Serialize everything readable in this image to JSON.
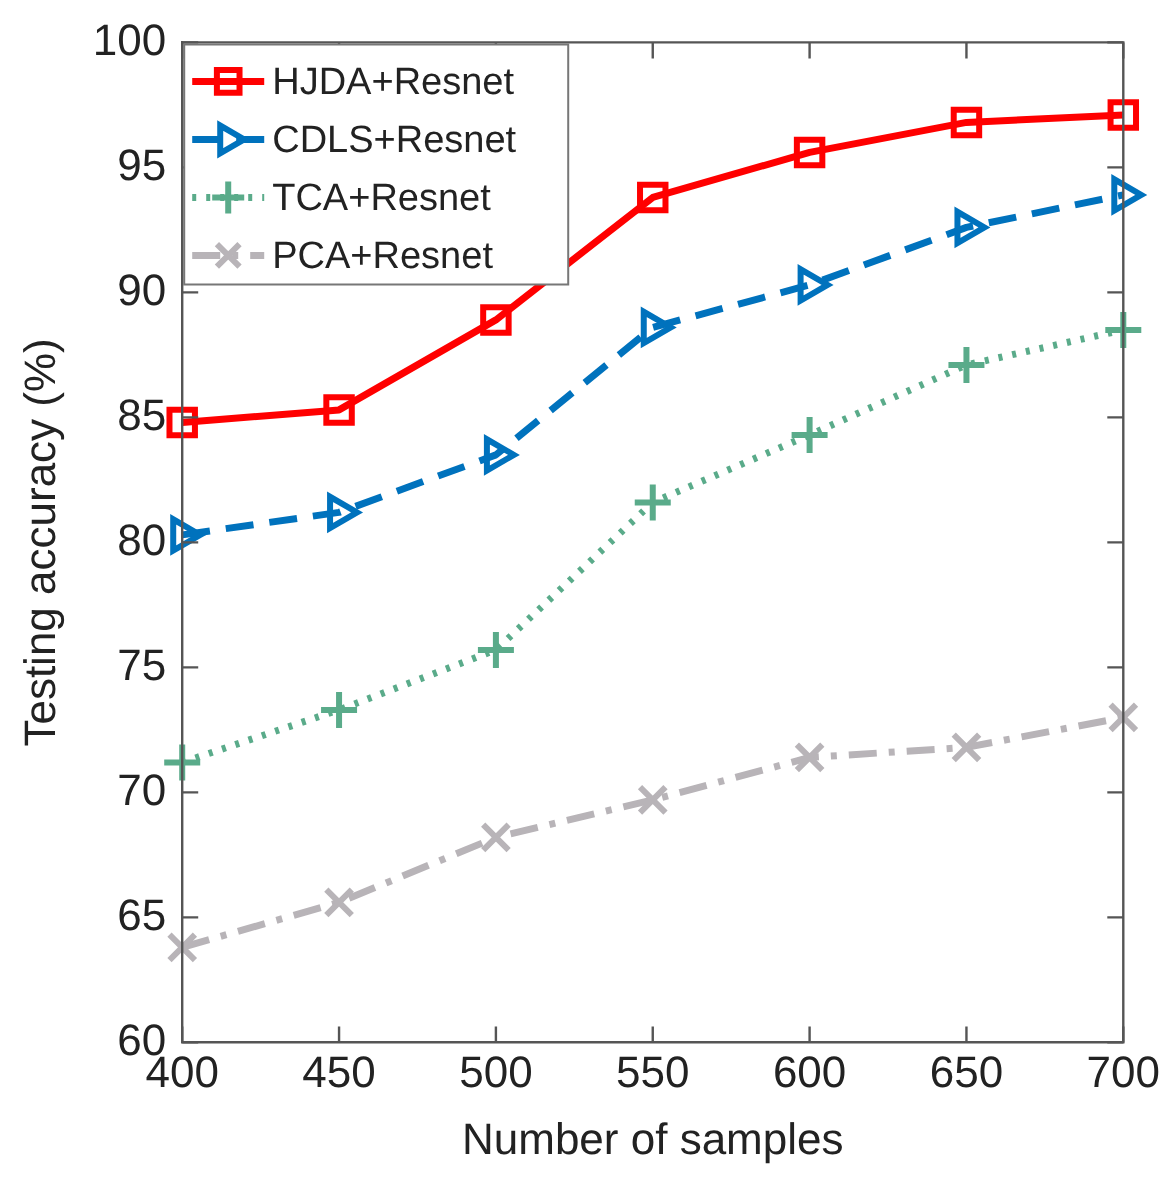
{
  "chart_data": {
    "type": "line",
    "xlabel": "Number of samples",
    "ylabel": "Testing accuracy (%)",
    "x": [
      400,
      450,
      500,
      550,
      600,
      650,
      700
    ],
    "series": [
      {
        "name": "HJDA+Resnet",
        "color": "#ff0000",
        "marker": "square",
        "line_style": "solid",
        "values": [
          84.8,
          85.3,
          88.9,
          93.8,
          95.6,
          96.8,
          97.1
        ]
      },
      {
        "name": "CDLS+Resnet",
        "color": "#0072bd",
        "marker": "triangle",
        "line_style": "dashed",
        "values": [
          80.3,
          81.2,
          83.5,
          88.6,
          90.3,
          92.6,
          93.9
        ]
      },
      {
        "name": "TCA+Resnet",
        "color": "#5aab8a",
        "marker": "cross",
        "line_style": "dotted",
        "values": [
          71.2,
          73.3,
          75.7,
          81.6,
          84.3,
          87.1,
          88.5
        ]
      },
      {
        "name": "PCA+Resnet",
        "color": "#b8b4b8",
        "marker": "x",
        "line_style": "dashdot",
        "values": [
          63.8,
          65.6,
          68.2,
          69.7,
          71.4,
          71.8,
          73.0
        ]
      }
    ],
    "xlim": [
      400,
      700
    ],
    "xticks": [
      400,
      450,
      500,
      550,
      600,
      650,
      700
    ],
    "ylim": [
      60,
      100
    ],
    "yticks": [
      60,
      65,
      70,
      75,
      80,
      85,
      90,
      95,
      100
    ],
    "grid": false,
    "legend": "top left"
  }
}
